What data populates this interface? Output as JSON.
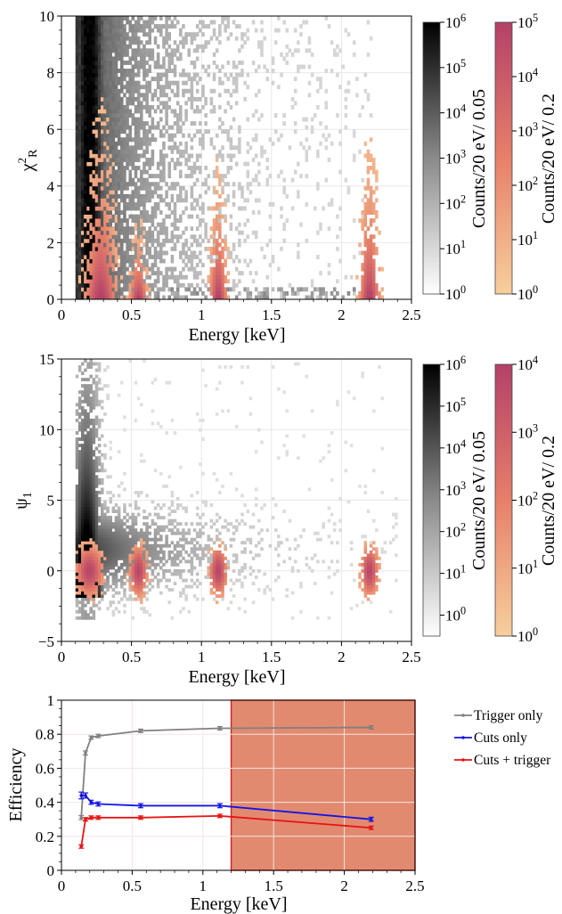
{
  "chart_data": [
    {
      "type": "heatmap",
      "xlabel": "Energy [keV]",
      "ylabel": "χ²_R",
      "ylabel_main": "χ",
      "ylabel_sup": "2",
      "ylabel_sub": "R",
      "xlim": [
        0,
        2.5
      ],
      "ylim": [
        0,
        10
      ],
      "x_ticks": [
        "0",
        "0.5",
        "1",
        "1.5",
        "2",
        "2.5"
      ],
      "y_ticks": [
        "0",
        "2",
        "4",
        "6",
        "8",
        "10"
      ],
      "gray_band": {
        "x_range": [
          0.1,
          2.0
        ],
        "core_x": 0.22,
        "description_free": true
      },
      "peaks_keV": [
        0.28,
        0.55,
        1.12,
        2.2
      ],
      "colorbars": [
        {
          "label": "Counts/20 eV/ 0.05",
          "scale": "log",
          "colormap": "gray",
          "ticks": [
            "10^0",
            "10^1",
            "10^2",
            "10^3",
            "10^4",
            "10^5",
            "10^6"
          ],
          "range": [
            0,
            6
          ]
        },
        {
          "label": "Counts/20 eV/ 0.2",
          "scale": "log",
          "colormap": "peach-to-magenta",
          "ticks": [
            "10^0",
            "10^1",
            "10^2",
            "10^3",
            "10^4",
            "10^5"
          ],
          "range": [
            0,
            5
          ]
        }
      ]
    },
    {
      "type": "heatmap",
      "xlabel": "Energy [keV]",
      "ylabel": "ψ",
      "ylabel_sub": "1",
      "xlim": [
        0,
        2.5
      ],
      "ylim": [
        -5,
        15
      ],
      "x_ticks": [
        "0",
        "0.5",
        "1",
        "1.5",
        "2",
        "2.5"
      ],
      "y_ticks": [
        "−5",
        "0",
        "5",
        "10",
        "15"
      ],
      "peaks_keV": [
        0.2,
        0.55,
        1.12,
        2.2
      ],
      "colorbars": [
        {
          "label": "Counts/20 eV/ 0.05",
          "scale": "log",
          "colormap": "gray",
          "ticks": [
            "10^0",
            "10^1",
            "10^2",
            "10^3",
            "10^4",
            "10^5",
            "10^6"
          ],
          "range": [
            -0.5,
            6
          ]
        },
        {
          "label": "Counts/20 eV/ 0.2",
          "scale": "log",
          "colormap": "peach-to-magenta",
          "ticks": [
            "10^0",
            "10^1",
            "10^2",
            "10^3",
            "10^4"
          ],
          "range": [
            0,
            4
          ]
        }
      ]
    },
    {
      "type": "line",
      "xlabel": "Energy [keV]",
      "ylabel": "Efficiency",
      "xlim": [
        0,
        2.5
      ],
      "ylim": [
        0,
        1
      ],
      "x_ticks": [
        "0",
        "0.5",
        "1",
        "1.5",
        "2",
        "2.5"
      ],
      "y_ticks": [
        "0",
        "0.2",
        "0.4",
        "0.6",
        "0.8",
        "1"
      ],
      "shaded_region": {
        "x_range": [
          1.2,
          2.5
        ],
        "color": "#e28a6f"
      },
      "legend_position": "right",
      "series": [
        {
          "name": "Trigger only",
          "color": "#808080",
          "x": [
            0.14,
            0.17,
            0.21,
            0.26,
            0.56,
            1.12,
            2.19
          ],
          "y": [
            0.31,
            0.69,
            0.78,
            0.79,
            0.82,
            0.835,
            0.84
          ],
          "err": [
            0.012,
            0.012,
            0.01,
            0.01,
            0.01,
            0.01,
            0.01
          ]
        },
        {
          "name": "Cuts only",
          "color": "#1414e6",
          "x": [
            0.14,
            0.17,
            0.21,
            0.26,
            0.56,
            1.12,
            2.19
          ],
          "y": [
            0.44,
            0.44,
            0.4,
            0.39,
            0.38,
            0.38,
            0.3
          ],
          "err": [
            0.02,
            0.015,
            0.012,
            0.012,
            0.012,
            0.012,
            0.012
          ]
        },
        {
          "name": "Cuts + trigger",
          "color": "#e61414",
          "x": [
            0.14,
            0.17,
            0.21,
            0.26,
            0.56,
            1.12,
            2.19
          ],
          "y": [
            0.14,
            0.3,
            0.31,
            0.31,
            0.31,
            0.32,
            0.25
          ],
          "err": [
            0.01,
            0.01,
            0.01,
            0.01,
            0.01,
            0.01,
            0.01
          ]
        }
      ]
    }
  ]
}
